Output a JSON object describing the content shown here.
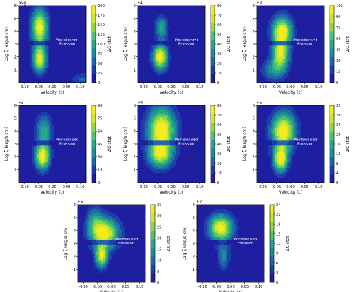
{
  "figure": {
    "x_axis_label": "Velocity (c)",
    "y_axis_label": "Log ξ (erg/s cm)",
    "colorbar_label": "ΔC-stat",
    "annotation_line1": "Photoionised",
    "annotation_line2": "Emission"
  },
  "colors": {
    "colormap": [
      "#1e1ea0",
      "#1f3fa8",
      "#1f6aa6",
      "#1f8c9e",
      "#25a88c",
      "#4dc46c",
      "#8ed847",
      "#cfe62c",
      "#f5ec1f"
    ],
    "annotation_text": "#ffffff",
    "axis": "#000000"
  },
  "chart_data": [
    {
      "type": "heatmap",
      "title": "avg",
      "xlim": [
        -0.12,
        0.12
      ],
      "ylim": [
        0,
        6
      ],
      "x_ticks": [
        "-0.10",
        "-0.05",
        "0.00",
        "0.05",
        "0.10"
      ],
      "y_ticks": [
        "1",
        "2",
        "3",
        "4",
        "5",
        "6"
      ],
      "colorbar_ticks": [
        "0",
        "25",
        "50",
        "75",
        "100",
        "125",
        "150",
        "175",
        "200"
      ],
      "colorbar_range": [
        0,
        200
      ],
      "blobs": [
        {
          "x": -0.045,
          "y": 4.3,
          "sx": 0.02,
          "sy": 1.0,
          "amp": 190
        },
        {
          "x": -0.045,
          "y": 1.8,
          "sx": 0.017,
          "sy": 0.7,
          "amp": 180
        },
        {
          "x": 0.11,
          "y": 0.25,
          "sx": 0.03,
          "sy": 0.35,
          "amp": 50
        }
      ]
    },
    {
      "type": "heatmap",
      "title": "F1",
      "xlim": [
        -0.12,
        0.12
      ],
      "ylim": [
        0,
        6
      ],
      "x_ticks": [
        "-0.10",
        "-0.05",
        "0.00",
        "0.05",
        "0.10"
      ],
      "y_ticks": [
        "1",
        "2",
        "3",
        "4",
        "5",
        "6"
      ],
      "colorbar_ticks": [
        "0",
        "10",
        "20",
        "30",
        "40",
        "50",
        "60",
        "70",
        "80"
      ],
      "colorbar_range": [
        0,
        80
      ],
      "blobs": [
        {
          "x": -0.04,
          "y": 2.0,
          "sx": 0.018,
          "sy": 0.7,
          "amp": 78
        },
        {
          "x": -0.035,
          "y": 4.3,
          "sx": 0.015,
          "sy": 0.6,
          "amp": 40
        }
      ]
    },
    {
      "type": "heatmap",
      "title": "F2",
      "xlim": [
        -0.12,
        0.12
      ],
      "ylim": [
        0,
        6
      ],
      "x_ticks": [
        "-0.10",
        "-0.05",
        "0.00",
        "0.05",
        "0.10"
      ],
      "y_ticks": [
        "1",
        "2",
        "3",
        "4",
        "5",
        "6"
      ],
      "colorbar_ticks": [
        "0",
        "15",
        "30",
        "45",
        "60",
        "75",
        "90",
        "105"
      ],
      "colorbar_range": [
        0,
        105
      ],
      "blobs": [
        {
          "x": -0.03,
          "y": 4.0,
          "sx": 0.025,
          "sy": 0.8,
          "amp": 100
        },
        {
          "x": -0.035,
          "y": 2.2,
          "sx": 0.02,
          "sy": 0.8,
          "amp": 85
        },
        {
          "x": -0.06,
          "y": 1.0,
          "sx": 0.03,
          "sy": 0.6,
          "amp": 40
        }
      ]
    },
    {
      "type": "heatmap",
      "title": "F3",
      "xlim": [
        -0.12,
        0.12
      ],
      "ylim": [
        0,
        6
      ],
      "x_ticks": [
        "-0.10",
        "-0.05",
        "0.00",
        "0.05",
        "0.10"
      ],
      "y_ticks": [
        "1",
        "2",
        "3",
        "4",
        "5",
        "6"
      ],
      "colorbar_ticks": [
        "0",
        "15",
        "30",
        "45",
        "60",
        "75",
        "90"
      ],
      "colorbar_range": [
        0,
        90
      ],
      "blobs": [
        {
          "x": -0.035,
          "y": 2.0,
          "sx": 0.018,
          "sy": 0.7,
          "amp": 88
        },
        {
          "x": -0.03,
          "y": 4.0,
          "sx": 0.02,
          "sy": 0.9,
          "amp": 45
        }
      ]
    },
    {
      "type": "heatmap",
      "title": "F4",
      "xlim": [
        -0.12,
        0.12
      ],
      "ylim": [
        0,
        6
      ],
      "x_ticks": [
        "-0.10",
        "-0.05",
        "0.00",
        "0.05",
        "0.10"
      ],
      "y_ticks": [
        "1",
        "2",
        "3",
        "4",
        "5",
        "6"
      ],
      "colorbar_ticks": [
        "0",
        "10",
        "20",
        "30",
        "40",
        "50",
        "60",
        "70",
        "80"
      ],
      "colorbar_range": [
        0,
        80
      ],
      "blobs": [
        {
          "x": -0.035,
          "y": 4.1,
          "sx": 0.035,
          "sy": 1.2,
          "amp": 80
        },
        {
          "x": -0.04,
          "y": 2.1,
          "sx": 0.03,
          "sy": 0.7,
          "amp": 55
        }
      ]
    },
    {
      "type": "heatmap",
      "title": "F5",
      "xlim": [
        -0.12,
        0.12
      ],
      "ylim": [
        0,
        6
      ],
      "x_ticks": [
        "-0.10",
        "-0.05",
        "0.00",
        "0.05",
        "0.10"
      ],
      "y_ticks": [
        "1",
        "2",
        "3",
        "4",
        "5",
        "6"
      ],
      "colorbar_ticks": [
        "0",
        "4",
        "8",
        "12",
        "16",
        "20",
        "24",
        "28",
        "32"
      ],
      "colorbar_range": [
        0,
        32
      ],
      "blobs": [
        {
          "x": -0.025,
          "y": 4.0,
          "sx": 0.03,
          "sy": 1.0,
          "amp": 32
        },
        {
          "x": -0.035,
          "y": 1.8,
          "sx": 0.018,
          "sy": 0.7,
          "amp": 30
        }
      ]
    },
    {
      "type": "heatmap",
      "title": "F6",
      "xlim": [
        -0.12,
        0.12
      ],
      "ylim": [
        0,
        6
      ],
      "x_ticks": [
        "-0.10",
        "-0.05",
        "0.00",
        "0.05",
        "0.10"
      ],
      "y_ticks": [
        "1",
        "2",
        "3",
        "4",
        "5",
        "6"
      ],
      "colorbar_ticks": [
        "0",
        "5",
        "10",
        "15",
        "20",
        "25",
        "30",
        "35"
      ],
      "colorbar_range": [
        0,
        35
      ],
      "blobs": [
        {
          "x": -0.025,
          "y": 3.8,
          "sx": 0.035,
          "sy": 0.8,
          "amp": 34
        },
        {
          "x": -0.035,
          "y": 2.0,
          "sx": 0.015,
          "sy": 0.6,
          "amp": 30
        },
        {
          "x": -0.06,
          "y": 4.8,
          "sx": 0.02,
          "sy": 0.8,
          "amp": 12
        }
      ]
    },
    {
      "type": "heatmap",
      "title": "F7",
      "xlim": [
        -0.12,
        0.12
      ],
      "ylim": [
        0,
        6
      ],
      "x_ticks": [
        "-0.10",
        "-0.05",
        "0.00",
        "0.05",
        "0.10"
      ],
      "y_ticks": [
        "1",
        "2",
        "3",
        "4",
        "5",
        "6"
      ],
      "colorbar_ticks": [
        "0",
        "3",
        "6",
        "9",
        "12",
        "15",
        "18",
        "21",
        "24"
      ],
      "colorbar_range": [
        0,
        24
      ],
      "blobs": [
        {
          "x": -0.035,
          "y": 4.2,
          "sx": 0.03,
          "sy": 0.7,
          "amp": 23
        },
        {
          "x": -0.025,
          "y": 2.0,
          "sx": 0.015,
          "sy": 0.7,
          "amp": 9
        }
      ]
    }
  ]
}
